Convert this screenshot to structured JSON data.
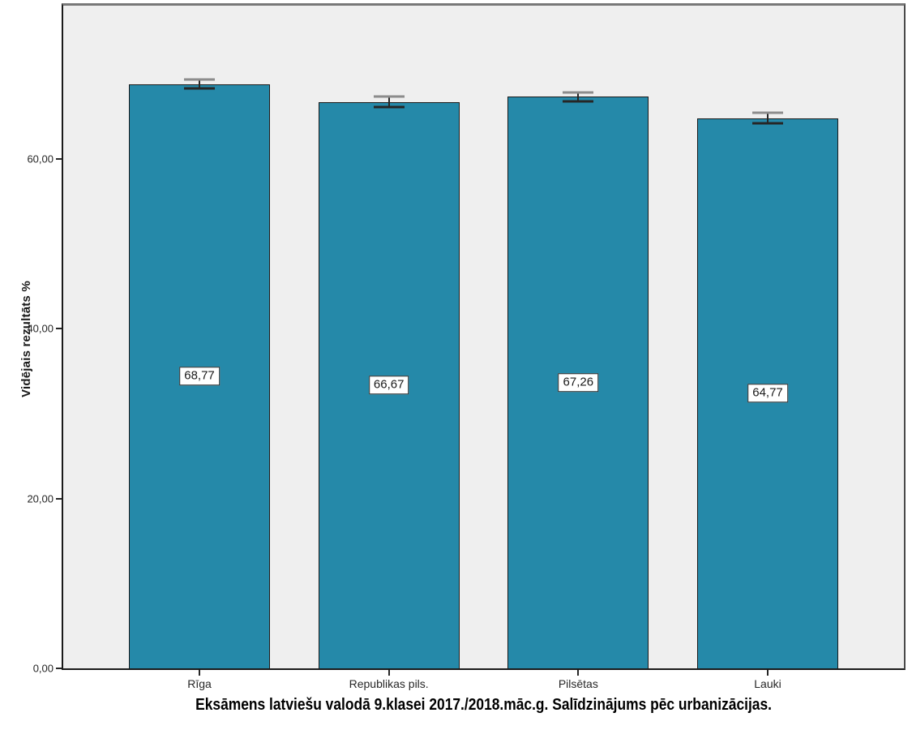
{
  "chart_data": {
    "type": "bar",
    "title": "Eksāmens latviešu valodā 9.klasei 2017./2018.māc.g. Salīdzinājums pēc urbanizācijas.",
    "ylabel": "Vidējais rezultāts %",
    "xlabel": "",
    "categories": [
      "Rīga",
      "Republikas pils.",
      "Pilsētas",
      "Lauki"
    ],
    "values": [
      68.77,
      66.67,
      67.26,
      64.77
    ],
    "value_labels": [
      "68,77",
      "66,67",
      "67,26",
      "64,77"
    ],
    "error_bars": [
      0.52,
      0.62,
      0.48,
      0.63
    ],
    "ylim": [
      0,
      78
    ],
    "yticks": [
      0,
      20,
      40,
      60
    ],
    "ytick_labels": [
      "0,00",
      "20,00",
      "40,00",
      "60,00"
    ],
    "grid": false,
    "legend": null,
    "colors": {
      "bar_fill": "#2589a9",
      "bar_border": "#1a1a1a",
      "plot_background": "#efefef",
      "error_stem": "#262626",
      "error_cap_top": "#8c8c8c",
      "error_cap_bottom": "#262626",
      "text": "#262626"
    }
  }
}
